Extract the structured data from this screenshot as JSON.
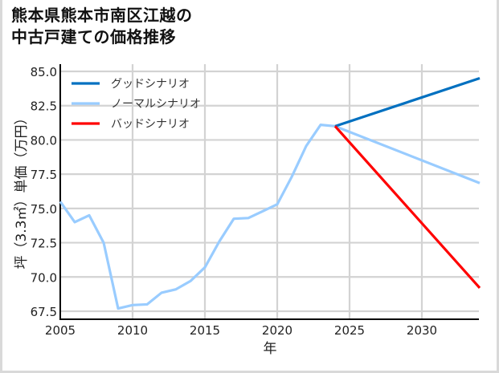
{
  "title_line1": "熊本県熊本市南区江越の",
  "title_line2": "中古戸建ての価格推移",
  "chart_data": {
    "type": "line",
    "title": "熊本県熊本市南区江越の中古戸建ての価格推移",
    "xlabel": "年",
    "ylabel": "坪（3.3㎡）単価（万円）",
    "xlim": [
      2005,
      2034
    ],
    "ylim": [
      66.8,
      85.2
    ],
    "xticks": [
      2005,
      2010,
      2015,
      2020,
      2025,
      2030
    ],
    "yticks": [
      67.5,
      70.0,
      72.5,
      75.0,
      77.5,
      80.0,
      82.5,
      85.0
    ],
    "grid": true,
    "legend_position": "upper left",
    "series": [
      {
        "name": "グッドシナリオ",
        "color": "#0070c0",
        "x": [
          2024,
          2034
        ],
        "values": [
          81.0,
          84.5
        ]
      },
      {
        "name": "ノーマルシナリオ",
        "color": "#99ccff",
        "x": [
          2005,
          2006,
          2007,
          2008,
          2009,
          2010,
          2011,
          2012,
          2013,
          2014,
          2015,
          2016,
          2017,
          2018,
          2019,
          2020,
          2021,
          2022,
          2023,
          2024,
          2034
        ],
        "values": [
          75.5,
          74.0,
          74.5,
          72.5,
          67.7,
          67.95,
          68.0,
          68.85,
          69.1,
          69.7,
          70.7,
          72.6,
          74.25,
          74.3,
          74.8,
          75.3,
          77.3,
          79.55,
          81.1,
          81.0,
          76.85
        ]
      },
      {
        "name": "バッドシナリオ",
        "color": "#ff0000",
        "x": [
          2024,
          2034
        ],
        "values": [
          81.0,
          69.2
        ]
      }
    ]
  }
}
